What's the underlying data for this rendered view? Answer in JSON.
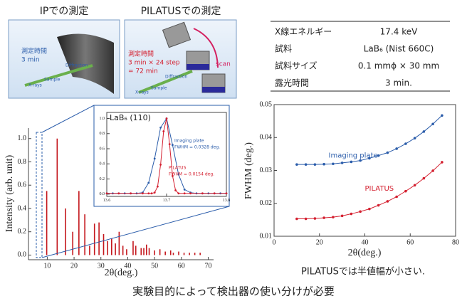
{
  "panels": [
    {
      "title": "IPでの測定",
      "time_label": "測定時間",
      "time": "3 min",
      "labels": [
        "Diffraction",
        "Sample",
        "X-rays"
      ]
    },
    {
      "title": "PILATUSでの測定",
      "time_label": "測定時間",
      "time": "3 min × 24 step",
      "total": "= 72 min",
      "labels": [
        "Diffraction",
        "Sample",
        "X-rays"
      ],
      "scan": "scan"
    }
  ],
  "table": {
    "rows": [
      [
        "X線エネルギー",
        "17.4 keV"
      ],
      [
        "試料",
        "LaB₆ (Nist 660C)"
      ],
      [
        "試料サイズ",
        "0.1 mmϕ × 30 mm"
      ],
      [
        "露光時間",
        "3 min."
      ]
    ]
  },
  "conclusion": "実験目的によって検出器の使い分けが必要",
  "chart_data": [
    {
      "type": "bar",
      "xlabel": "2θ(deg.)",
      "ylabel": "Intensity (arb. unit)",
      "color": "#c4161c",
      "x": [
        9.8,
        13.7,
        16.8,
        19.5,
        21.8,
        24.0,
        25.8,
        27.6,
        29.3,
        31.0,
        32.5,
        34.0,
        35.4,
        36.8,
        38.2,
        39.6,
        42.0,
        43.0,
        45.0,
        46.0,
        47.0,
        48.0,
        50.0,
        52.0,
        54.0,
        56.0,
        57.0,
        59.0,
        61.0,
        63.0,
        65.0,
        67.0
      ],
      "values": [
        0.55,
        1.0,
        0.4,
        0.2,
        0.55,
        0.35,
        0.08,
        0.27,
        0.28,
        0.18,
        0.12,
        0.14,
        0.1,
        0.2,
        0.08,
        0.05,
        0.12,
        0.08,
        0.06,
        0.06,
        0.09,
        0.06,
        0.04,
        0.05,
        0.03,
        0.04,
        0.02,
        0.03,
        0.02,
        0.02,
        0.02,
        0.02
      ],
      "xlim": [
        3,
        72
      ],
      "ylim": [
        -0.04,
        1.09
      ],
      "xticks": [
        10,
        20,
        30,
        40,
        50,
        60,
        70
      ],
      "yticks": [
        {
          "value": 0,
          "label": "0.0"
        },
        0.2,
        0.4,
        0.6,
        0.8,
        {
          "value": 1,
          "label": "1.0"
        }
      ]
    },
    {
      "type": "line",
      "title": "LaB₆ (110)",
      "xlim": [
        13.6,
        13.8
      ],
      "ylim": [
        -0.03,
        1.08
      ],
      "xticks": [
        13.6,
        13.7,
        13.8
      ],
      "yticks": [
        {
          "value": 0,
          "label": "0.0"
        },
        0.2,
        0.4,
        0.6,
        0.8,
        {
          "value": 1,
          "label": "1.0"
        }
      ],
      "series": [
        {
          "name": "Imaging plate",
          "fwhm_label": "FWHM = 0.0328 deg.",
          "color": "#2a5caa",
          "x": [
            13.6,
            13.61,
            13.62,
            13.63,
            13.64,
            13.65,
            13.66,
            13.67,
            13.68,
            13.69,
            13.7,
            13.71,
            13.72,
            13.73,
            13.74,
            13.75,
            13.76,
            13.77,
            13.78,
            13.79,
            13.8
          ],
          "values": [
            0.01,
            0.01,
            0.01,
            0.01,
            0.01,
            0.01,
            0.02,
            0.15,
            0.47,
            0.88,
            1.0,
            0.65,
            0.26,
            0.06,
            0.02,
            0.01,
            0.01,
            0.01,
            0.01,
            0.01,
            0.01
          ]
        },
        {
          "name": "PILATUS",
          "fwhm_label": "FWHM = 0.0154 deg.",
          "color": "#d42030",
          "x": [
            13.6,
            13.62,
            13.64,
            13.66,
            13.67,
            13.675,
            13.68,
            13.685,
            13.69,
            13.695,
            13.7,
            13.705,
            13.71,
            13.715,
            13.72,
            13.73,
            13.74,
            13.76,
            13.78,
            13.8
          ],
          "values": [
            0.01,
            0.01,
            0.01,
            0.01,
            0.01,
            0.01,
            0.02,
            0.1,
            0.39,
            0.83,
            1.0,
            0.66,
            0.24,
            0.05,
            0.01,
            0.01,
            0.01,
            0.01,
            0.01,
            0.01
          ]
        }
      ]
    },
    {
      "type": "line",
      "xlabel": "2θ(deg.)",
      "ylabel": "FWHM (deg.)",
      "caption": "PILATUSでは半値幅が小さい.",
      "xlim": [
        0,
        80
      ],
      "ylim": [
        0.01,
        0.05
      ],
      "xticks": [
        0,
        20,
        40,
        60,
        80
      ],
      "yticks": [
        0.01,
        0.02,
        0.03,
        0.04,
        0.05
      ],
      "x": [
        10,
        14,
        18,
        22,
        26,
        30,
        34,
        38,
        42,
        46,
        50,
        54,
        58,
        62,
        66,
        70,
        74
      ],
      "series": [
        {
          "name": "Imaging plate",
          "color": "#2a5caa",
          "values": [
            0.0318,
            0.0318,
            0.0318,
            0.0319,
            0.032,
            0.0323,
            0.0326,
            0.033,
            0.0337,
            0.0345,
            0.0354,
            0.0366,
            0.0381,
            0.0398,
            0.0418,
            0.0441,
            0.0467
          ]
        },
        {
          "name": "PILATUS",
          "color": "#d42030",
          "values": [
            0.0153,
            0.0153,
            0.0154,
            0.0156,
            0.0158,
            0.0162,
            0.0168,
            0.0175,
            0.0183,
            0.0194,
            0.0206,
            0.022,
            0.0237,
            0.0255,
            0.0276,
            0.0299,
            0.0325
          ]
        }
      ]
    }
  ]
}
